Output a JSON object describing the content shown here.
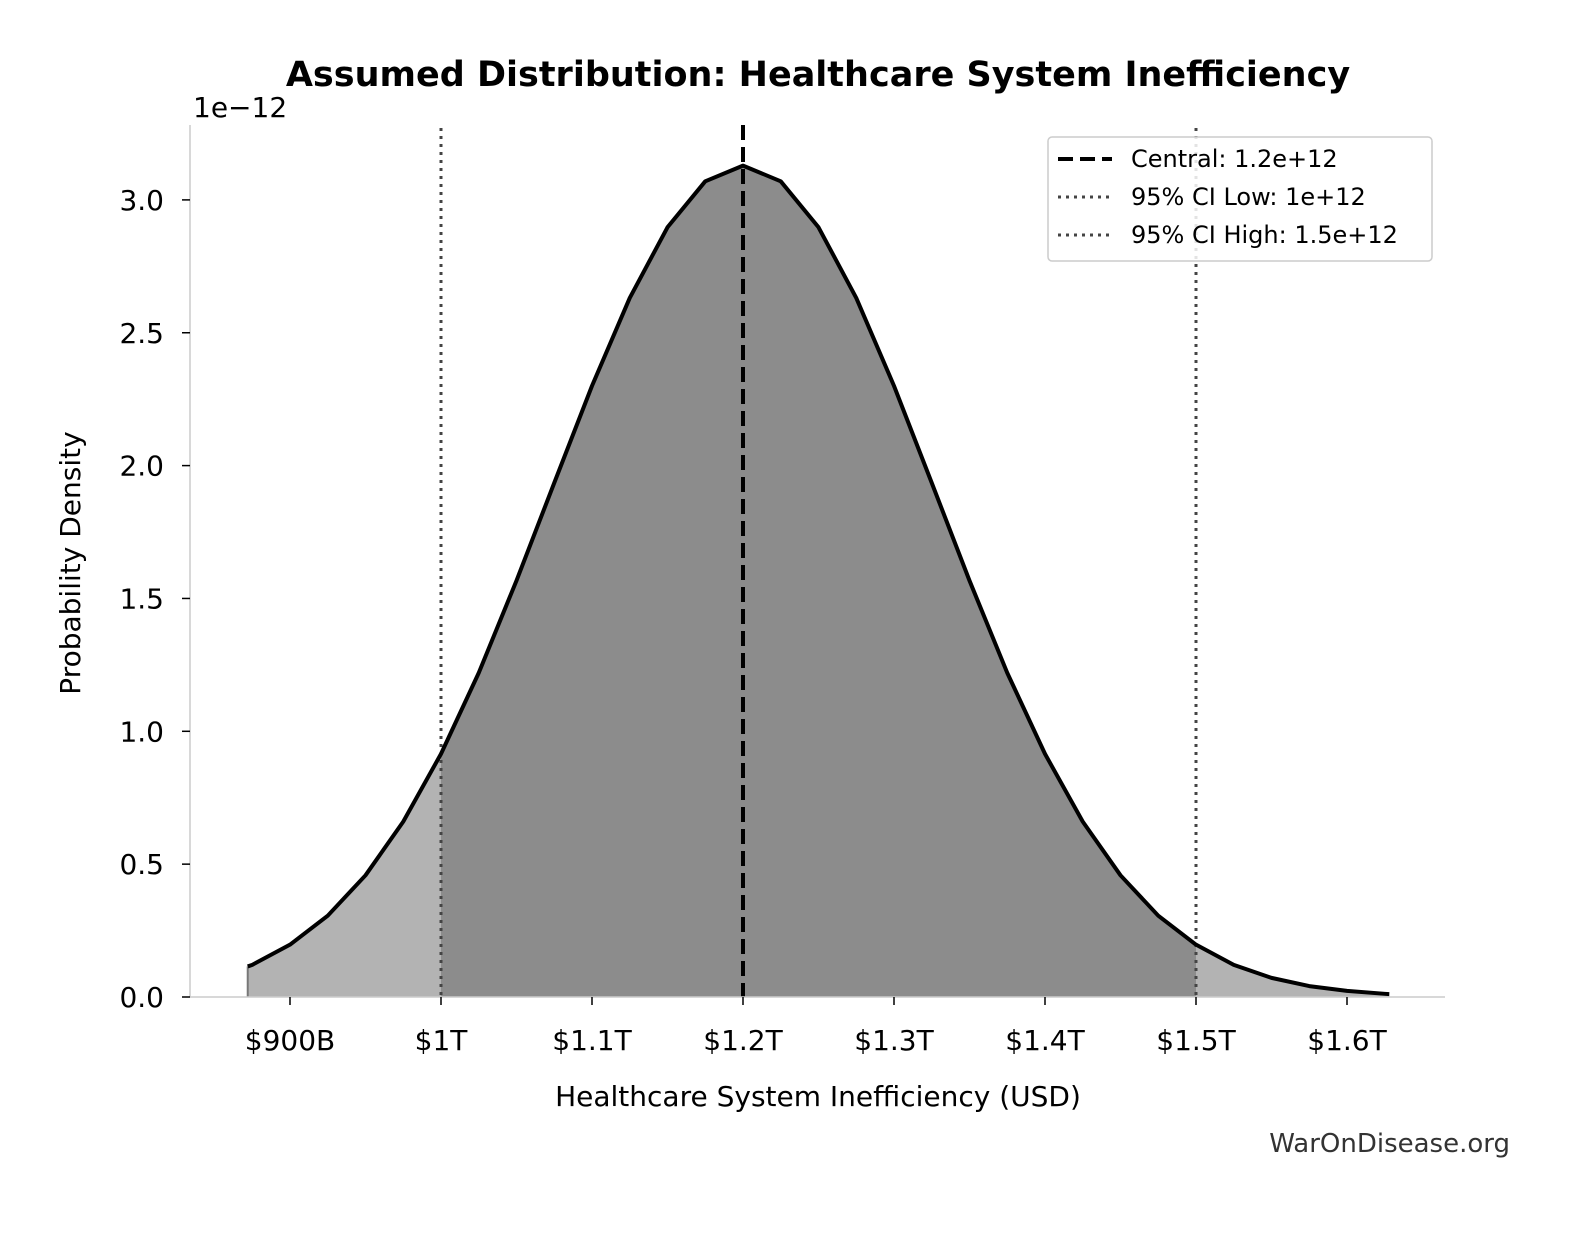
{
  "chart_data": {
    "type": "area",
    "title": "Assumed Distribution: Healthcare System Inefficiency",
    "xlabel": "Healthcare System Inefficiency (USD)",
    "ylabel": "Probability Density",
    "y_offset_label": "1e−12",
    "xlim": [
      835000000000.0,
      1665000000000.0
    ],
    "ylim": [
      0,
      3.28
    ],
    "grid": false,
    "legend_position": "top-right",
    "x_ticks": [
      {
        "value": 900000000000.0,
        "label": "$900B"
      },
      {
        "value": 1000000000000.0,
        "label": "$1T"
      },
      {
        "value": 1100000000000.0,
        "label": "$1.1T"
      },
      {
        "value": 1200000000000.0,
        "label": "$1.2T"
      },
      {
        "value": 1300000000000.0,
        "label": "$1.3T"
      },
      {
        "value": 1400000000000.0,
        "label": "$1.4T"
      },
      {
        "value": 1500000000000.0,
        "label": "$1.5T"
      },
      {
        "value": 1600000000000.0,
        "label": "$1.6T"
      }
    ],
    "y_ticks": [
      {
        "value": 0.0,
        "label": "0.0"
      },
      {
        "value": 0.5,
        "label": "0.5"
      },
      {
        "value": 1.0,
        "label": "1.0"
      },
      {
        "value": 1.5,
        "label": "1.5"
      },
      {
        "value": 2.0,
        "label": "2.0"
      },
      {
        "value": 2.5,
        "label": "2.5"
      },
      {
        "value": 3.0,
        "label": "3.0"
      }
    ],
    "series": [
      {
        "x": [
          872000000000.0,
          875000000000.0,
          900000000000.0,
          925000000000.0,
          950000000000.0,
          975000000000.0,
          1000000000000.0,
          1025000000000.0,
          1050000000000.0,
          1075000000000.0,
          1100000000000.0,
          1125000000000.0,
          1150000000000.0,
          1175000000000.0,
          1200000000000.0,
          1225000000000.0,
          1250000000000.0,
          1275000000000.0,
          1300000000000.0,
          1325000000000.0,
          1350000000000.0,
          1375000000000.0,
          1400000000000.0,
          1425000000000.0,
          1450000000000.0,
          1475000000000.0,
          1500000000000.0,
          1525000000000.0,
          1550000000000.0,
          1575000000000.0,
          1600000000000.0,
          1625000000000.0,
          1628000000000.0
        ],
        "y": [
          0.115,
          0.121,
          0.197,
          0.306,
          0.458,
          0.66,
          0.915,
          1.22,
          1.567,
          1.935,
          2.3,
          2.631,
          2.897,
          3.07,
          3.129,
          3.07,
          2.897,
          2.631,
          2.3,
          1.935,
          1.567,
          1.22,
          0.915,
          0.66,
          0.458,
          0.306,
          0.197,
          0.121,
          0.072,
          0.041,
          0.023,
          0.012,
          0.011
        ]
      }
    ],
    "shaded_region": {
      "from": 1000000000000.0,
      "to": 1500000000000.0
    },
    "colors": {
      "curve": "#000000",
      "fill_outer": "#b3b3b3",
      "fill_inner": "#8c8c8c",
      "ci_lines": "#444444"
    },
    "reference_lines": [
      {
        "x": 1200000000000.0,
        "style": "dashed",
        "label": "Central: 1.2e+12"
      },
      {
        "x": 1000000000000.0,
        "style": "dotted",
        "label": "95% CI Low: 1e+12"
      },
      {
        "x": 1500000000000.0,
        "style": "dotted",
        "label": "95% CI High: 1.5e+12"
      }
    ]
  },
  "watermark": "WarOnDisease.org"
}
